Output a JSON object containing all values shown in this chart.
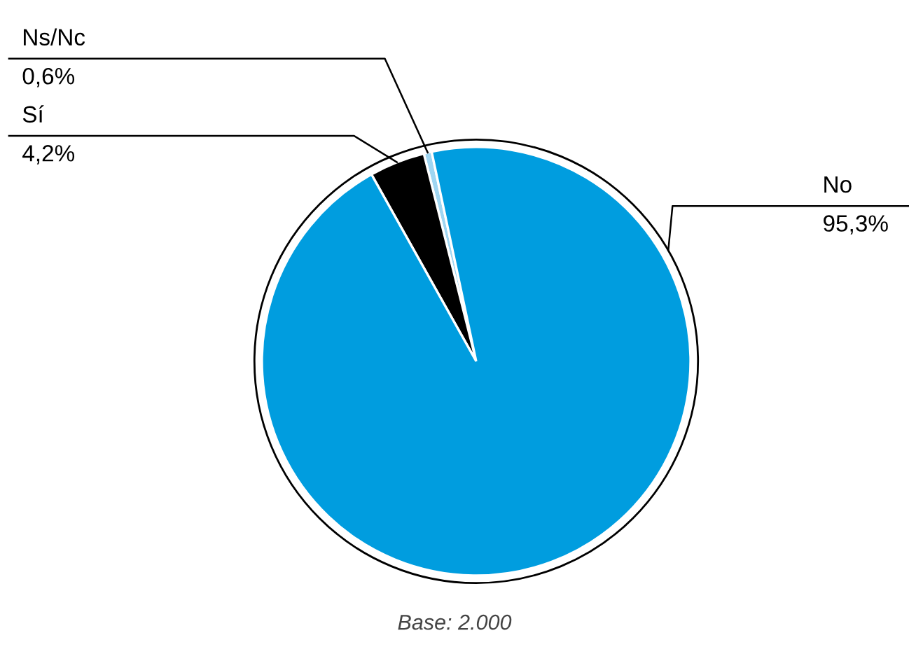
{
  "chart_data": {
    "type": "pie",
    "categories": [
      "Ns/Nc",
      "Sí",
      "No"
    ],
    "values": [
      0.6,
      4.2,
      95.3
    ],
    "value_labels": [
      "0,6%",
      "4,2%",
      "95,3%"
    ],
    "colors": [
      "#9fd6f2",
      "#000000",
      "#009ddf"
    ],
    "legend": false,
    "annotations": [
      "Base: 2.000"
    ]
  }
}
